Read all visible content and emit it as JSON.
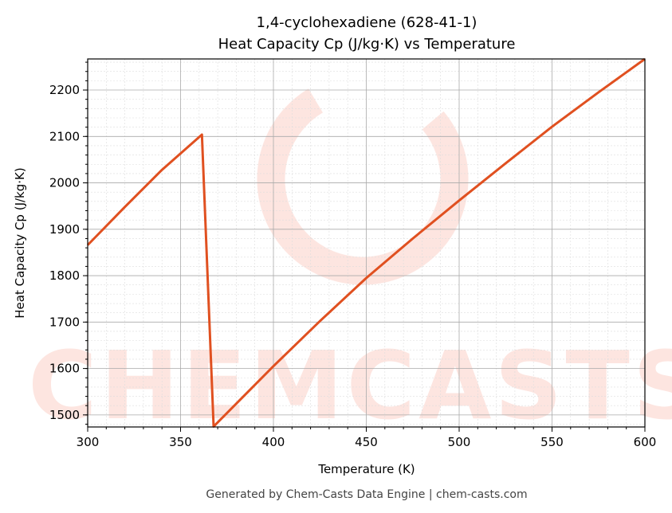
{
  "chart_data": {
    "type": "line",
    "title": "1,4-cyclohexadiene (628-41-1)",
    "subtitle": "Heat Capacity Cp (J/kg·K) vs Temperature",
    "xlabel": "Temperature (K)",
    "ylabel": "Heat Capacity Cp (J/kg·K)",
    "xlim": [
      300,
      600
    ],
    "ylim": [
      1474,
      2267
    ],
    "xticks": [
      300,
      350,
      400,
      450,
      500,
      550,
      600
    ],
    "yticks": [
      1500,
      1600,
      1700,
      1800,
      1900,
      2000,
      2100,
      2200
    ],
    "grid": true,
    "series": [
      {
        "name": "Cp",
        "color": "#e05020",
        "x": [
          300,
          320,
          340,
          361.5,
          367.8,
          400,
          425,
          450,
          475,
          500,
          525,
          550,
          575,
          600
        ],
        "y": [
          1866,
          1948,
          2028,
          2104,
          1475,
          1605,
          1702,
          1795,
          1880,
          1962,
          2042,
          2121,
          2195,
          2267
        ]
      }
    ]
  },
  "watermark": "CHEMCASTS",
  "footer": "Generated by Chem-Casts Data Engine | chem-casts.com"
}
